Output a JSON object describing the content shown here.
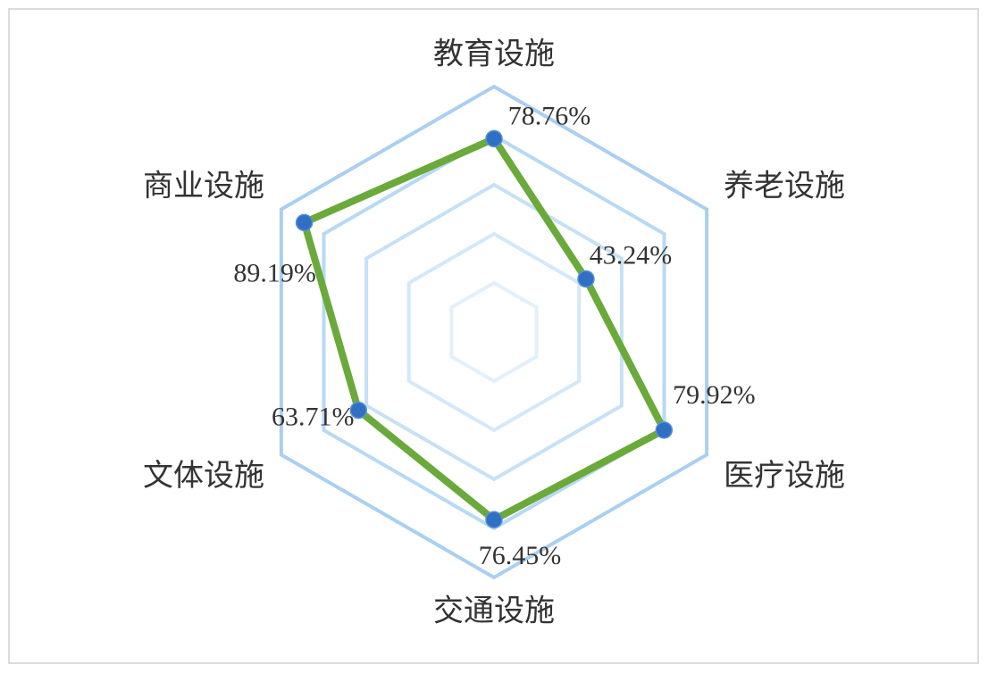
{
  "chart_data": {
    "type": "radar",
    "categories": [
      "教育设施",
      "养老设施",
      "医疗设施",
      "交通设施",
      "文体设施",
      "商业设施"
    ],
    "values": [
      78.76,
      43.24,
      79.92,
      76.45,
      63.71,
      89.19
    ],
    "value_labels": [
      "78.76%",
      "43.24%",
      "79.92%",
      "76.45%",
      "63.71%",
      "89.19%"
    ],
    "color": "#6aaa3a",
    "marker_color": "#2f6fc4",
    "ylim": [
      0,
      100
    ],
    "yticks": [
      20,
      40,
      60,
      80,
      100
    ],
    "grid": true
  }
}
